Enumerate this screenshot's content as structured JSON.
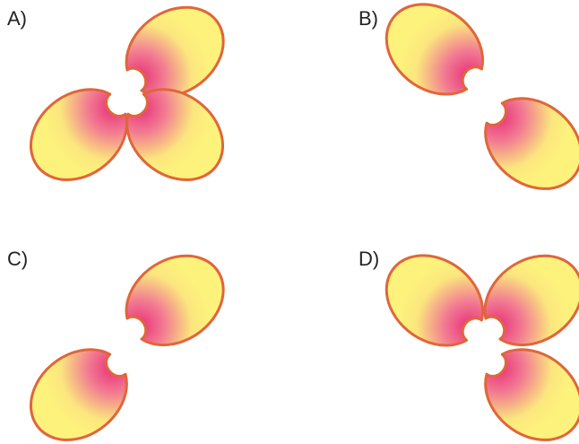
{
  "panels": [
    {
      "label": "A)"
    },
    {
      "label": "B)"
    },
    {
      "label": "C)"
    },
    {
      "label": "D)"
    }
  ]
}
